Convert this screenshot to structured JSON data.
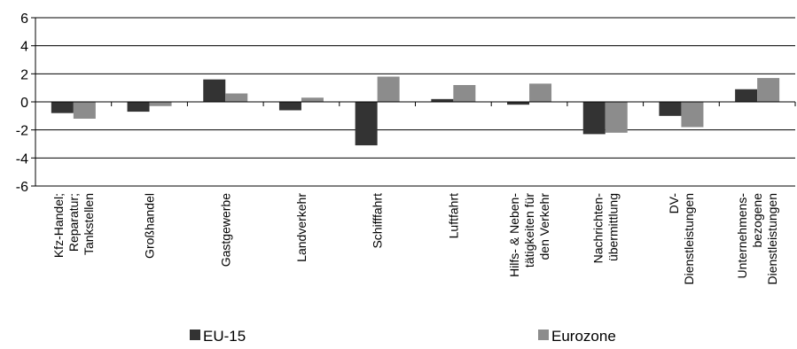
{
  "chart_data": {
    "type": "bar",
    "title": "",
    "xlabel": "",
    "ylabel": "",
    "ylim": [
      -6,
      6
    ],
    "yticks": [
      6,
      4,
      2,
      0,
      -2,
      -4,
      -6
    ],
    "yticks_display": [
      "6",
      "4",
      "2",
      "0",
      "-2",
      "-4",
      "-6"
    ],
    "grid": true,
    "legend": "bottom",
    "categories": [
      [
        "Kfz-Handel;",
        "Reparatur;",
        "Tankstellen"
      ],
      [
        "Großhandel"
      ],
      [
        "Gastgewerbe"
      ],
      [
        "Landverkehr"
      ],
      [
        "Schifffahrt"
      ],
      [
        "Luftfahrt"
      ],
      [
        "Hilfs- & Neben-",
        "tätigkeiten für",
        "den Verkehr"
      ],
      [
        "Nachrichten-",
        "übermittlung"
      ],
      [
        "DV-",
        "Dienstleistungen"
      ],
      [
        "Unternehmens-",
        "bezogene",
        "Dienstleistungen"
      ]
    ],
    "series": [
      {
        "name": "EU-15",
        "color": "#333333",
        "values": [
          -0.8,
          -0.7,
          1.6,
          -0.6,
          -3.1,
          0.2,
          -0.2,
          -2.3,
          -1.0,
          0.9
        ]
      },
      {
        "name": "Eurozone",
        "color": "#8c8c8c",
        "values": [
          -1.2,
          -0.3,
          0.6,
          0.3,
          1.8,
          1.2,
          1.3,
          -2.2,
          -1.8,
          1.7
        ]
      }
    ]
  }
}
